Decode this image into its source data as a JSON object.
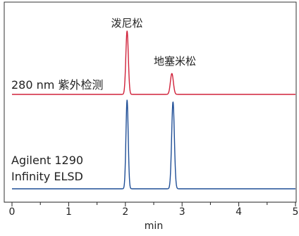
{
  "chart_data": {
    "type": "line",
    "xlabel": "min",
    "x_ticks": [
      0,
      1,
      2,
      3,
      4,
      5
    ],
    "xlim": [
      0,
      5
    ],
    "series": [
      {
        "name": "280 nm 紫外检测",
        "label_lines": [
          "280 nm 紫外检测"
        ],
        "color": "#d0223a",
        "baseline": 0,
        "peaks": [
          {
            "time": 2.03,
            "height": 1.0,
            "width": 0.022
          },
          {
            "time": 2.82,
            "height": 0.33,
            "width": 0.026
          }
        ]
      },
      {
        "name": "Agilent 1290 Infinity ELSD",
        "label_lines": [
          "Agilent 1290",
          "Infinity ELSD"
        ],
        "color": "#1f4e96",
        "baseline": 0,
        "peaks": [
          {
            "time": 2.03,
            "height": 1.0,
            "width": 0.02
          },
          {
            "time": 2.84,
            "height": 0.98,
            "width": 0.024
          }
        ]
      }
    ],
    "annotations": [
      {
        "text": "泼尼松",
        "x": 2.03
      },
      {
        "text": "地塞米松",
        "x": 2.82
      }
    ]
  }
}
